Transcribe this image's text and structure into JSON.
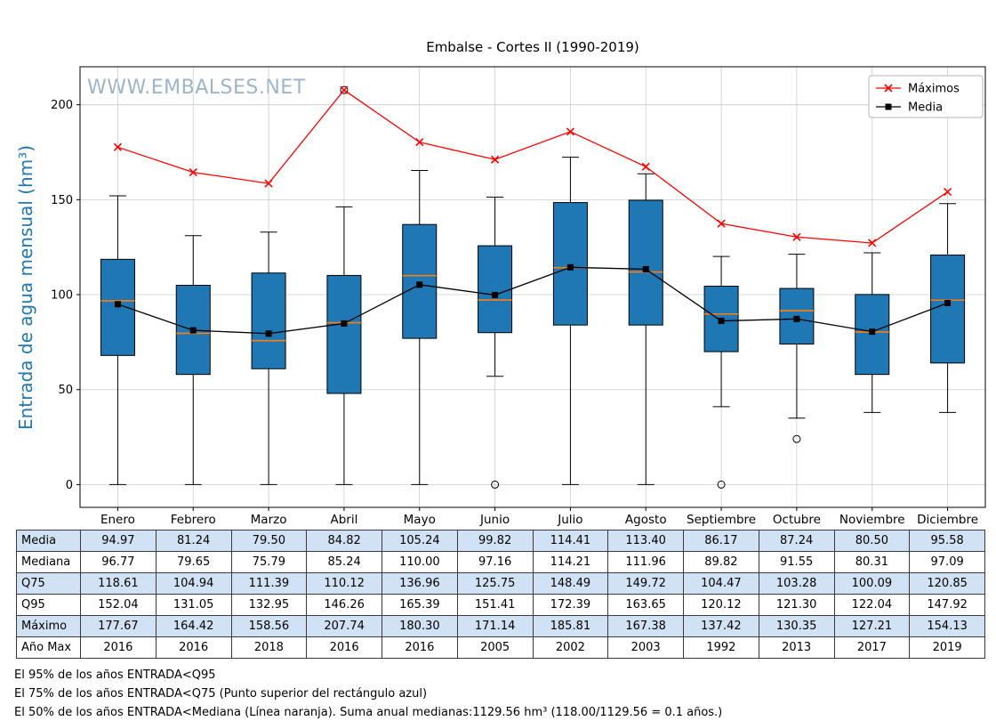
{
  "watermark": "WWW.EMBALSES.NET",
  "chart_data": {
    "type": "boxplot",
    "title": "Embalse - Cortes II (1990-2019)",
    "ylabel": "Entrada de agua mensual (hm³)",
    "xlabel": "",
    "categories": [
      "Enero",
      "Febrero",
      "Marzo",
      "Abril",
      "Mayo",
      "Junio",
      "Julio",
      "Agosto",
      "Septiembre",
      "Octubre",
      "Noviembre",
      "Diciembre"
    ],
    "ylim": [
      -12,
      220
    ],
    "yticks": [
      0,
      50,
      100,
      150,
      200
    ],
    "grid": true,
    "legend": {
      "position": "top-right",
      "entries": [
        {
          "label": "Máximos",
          "color": "#ff0000",
          "marker": "x"
        },
        {
          "label": "Media",
          "color": "#000000",
          "marker": "square"
        }
      ]
    },
    "series": [
      {
        "name": "Máximos",
        "type": "line",
        "color": "#ff0000",
        "marker": "x",
        "values": [
          177.67,
          164.42,
          158.56,
          207.74,
          180.3,
          171.14,
          185.81,
          167.38,
          137.42,
          130.35,
          127.21,
          154.13
        ]
      },
      {
        "name": "Media",
        "type": "line",
        "color": "#000000",
        "marker": "square",
        "values": [
          94.97,
          81.24,
          79.5,
          84.82,
          105.24,
          99.82,
          114.41,
          113.4,
          86.17,
          87.24,
          80.5,
          95.58
        ]
      }
    ],
    "boxplot": {
      "box_color": "#1f77b4",
      "median_color": "#ff7f0e",
      "boxes": [
        {
          "q1": 68,
          "median": 96.77,
          "q3": 118.61,
          "lo": 0,
          "hi": 152.04,
          "outliers": []
        },
        {
          "q1": 58,
          "median": 79.65,
          "q3": 104.94,
          "lo": 0,
          "hi": 131.05,
          "outliers": []
        },
        {
          "q1": 61,
          "median": 75.79,
          "q3": 111.39,
          "lo": 0,
          "hi": 132.95,
          "outliers": []
        },
        {
          "q1": 48,
          "median": 85.24,
          "q3": 110.12,
          "lo": 0,
          "hi": 146.26,
          "outliers": [
            207.74
          ]
        },
        {
          "q1": 77,
          "median": 110.0,
          "q3": 136.96,
          "lo": 0,
          "hi": 165.39,
          "outliers": []
        },
        {
          "q1": 80,
          "median": 97.16,
          "q3": 125.75,
          "lo": 57,
          "hi": 151.41,
          "outliers": [
            0
          ]
        },
        {
          "q1": 84,
          "median": 114.21,
          "q3": 148.49,
          "lo": 0,
          "hi": 172.39,
          "outliers": []
        },
        {
          "q1": 84,
          "median": 111.96,
          "q3": 149.72,
          "lo": 0,
          "hi": 163.65,
          "outliers": []
        },
        {
          "q1": 70,
          "median": 89.82,
          "q3": 104.47,
          "lo": 41,
          "hi": 120.12,
          "outliers": [
            0
          ]
        },
        {
          "q1": 74,
          "median": 91.55,
          "q3": 103.28,
          "lo": 35,
          "hi": 121.3,
          "outliers": [
            24
          ]
        },
        {
          "q1": 58,
          "median": 80.31,
          "q3": 100.09,
          "lo": 38,
          "hi": 122.04,
          "outliers": []
        },
        {
          "q1": 64,
          "median": 97.09,
          "q3": 120.85,
          "lo": 38,
          "hi": 147.92,
          "outliers": []
        }
      ]
    }
  },
  "table": {
    "row_labels": [
      "Media",
      "Mediana",
      "Q75",
      "Q95",
      "Máximo",
      "Año Max"
    ],
    "rows": [
      [
        "94.97",
        "81.24",
        "79.50",
        "84.82",
        "105.24",
        "99.82",
        "114.41",
        "113.40",
        "86.17",
        "87.24",
        "80.50",
        "95.58"
      ],
      [
        "96.77",
        "79.65",
        "75.79",
        "85.24",
        "110.00",
        "97.16",
        "114.21",
        "111.96",
        "89.82",
        "91.55",
        "80.31",
        "97.09"
      ],
      [
        "118.61",
        "104.94",
        "111.39",
        "110.12",
        "136.96",
        "125.75",
        "148.49",
        "149.72",
        "104.47",
        "103.28",
        "100.09",
        "120.85"
      ],
      [
        "152.04",
        "131.05",
        "132.95",
        "146.26",
        "165.39",
        "151.41",
        "172.39",
        "163.65",
        "120.12",
        "121.30",
        "122.04",
        "147.92"
      ],
      [
        "177.67",
        "164.42",
        "158.56",
        "207.74",
        "180.30",
        "171.14",
        "185.81",
        "167.38",
        "137.42",
        "130.35",
        "127.21",
        "154.13"
      ],
      [
        "2016",
        "2016",
        "2018",
        "2016",
        "2016",
        "2005",
        "2002",
        "2003",
        "1992",
        "2013",
        "2017",
        "2019"
      ]
    ]
  },
  "footnotes": [
    "El 95% de los años ENTRADA<Q95",
    "El 75% de los años ENTRADA<Q75 (Punto superior del rectángulo azul)",
    "El 50% de los años ENTRADA<Mediana (Línea naranja). Suma anual medianas:1129.56 hm³ (118.00/1129.56 = 0.1 años.)"
  ],
  "colors": {
    "box_fill": "#1f77b4",
    "median_line": "#ff7f0e",
    "maximos_line": "#ff0000",
    "media_line": "#000000",
    "ylabel_text": "#1f77b4",
    "watermark_text": "#9db5c8",
    "table_row_alt": "#d2e2f5",
    "grid": "#cccccc"
  }
}
